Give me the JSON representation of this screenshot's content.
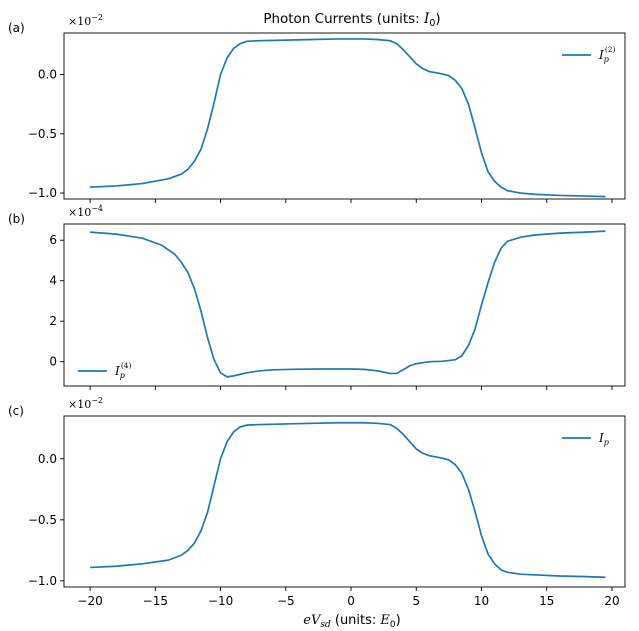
{
  "figure": {
    "title": "Photon Currents (units: ",
    "title_math": "I",
    "title_math_sub": "0",
    "title_close": ")",
    "xlabel_math": "eV",
    "xlabel_math_sub": "sd",
    "xlabel_text": " (units: ",
    "xlabel_math2": "E",
    "xlabel_math2_sub": "0",
    "xlabel_close": ")"
  },
  "chart_data": [
    {
      "type": "line",
      "panel_label": "(a)",
      "exponent_text": "×10",
      "exponent_power": "−2",
      "xlim": [
        -22,
        21
      ],
      "ylim": [
        -1.05,
        0.35
      ],
      "yticks": [
        -1.0,
        -0.5,
        0.0
      ],
      "ytick_labels": [
        "−1.0",
        "−0.5",
        "0.0"
      ],
      "xticks": [
        -20,
        -15,
        -10,
        -5,
        0,
        5,
        10,
        15,
        20
      ],
      "xtick_labels": [],
      "legend_position": "top-right",
      "color": "#1f77b4",
      "series": [
        {
          "name_main": "I",
          "name_sub": "p",
          "name_sup": "(2)",
          "x": [
            -20,
            -18,
            -16,
            -14,
            -13,
            -12.5,
            -12,
            -11.5,
            -11,
            -10.5,
            -10,
            -9.5,
            -9,
            -8.5,
            -8,
            -7,
            -5,
            -3,
            -1,
            0,
            1,
            2,
            3,
            3.5,
            4,
            4.5,
            5,
            5.5,
            6,
            6.5,
            7,
            7.5,
            8,
            8.5,
            9,
            9.5,
            10,
            10.5,
            11,
            11.5,
            12,
            13,
            14,
            16,
            18,
            19.5
          ],
          "y": [
            -0.95,
            -0.94,
            -0.92,
            -0.88,
            -0.84,
            -0.8,
            -0.73,
            -0.63,
            -0.46,
            -0.24,
            0.0,
            0.14,
            0.22,
            0.26,
            0.28,
            0.285,
            0.29,
            0.295,
            0.3,
            0.3,
            0.3,
            0.295,
            0.285,
            0.26,
            0.21,
            0.15,
            0.09,
            0.05,
            0.025,
            0.015,
            0.005,
            -0.01,
            -0.05,
            -0.12,
            -0.25,
            -0.45,
            -0.66,
            -0.82,
            -0.9,
            -0.95,
            -0.98,
            -1.0,
            -1.01,
            -1.02,
            -1.025,
            -1.03
          ]
        }
      ]
    },
    {
      "type": "line",
      "panel_label": "(b)",
      "exponent_text": "×10",
      "exponent_power": "−4",
      "xlim": [
        -22,
        21
      ],
      "ylim": [
        -1.2,
        6.8
      ],
      "yticks": [
        0,
        2,
        4,
        6
      ],
      "ytick_labels": [
        "0",
        "2",
        "4",
        "6"
      ],
      "xticks": [
        -20,
        -15,
        -10,
        -5,
        0,
        5,
        10,
        15,
        20
      ],
      "xtick_labels": [],
      "legend_position": "bottom-left",
      "color": "#1f77b4",
      "series": [
        {
          "name_main": "I",
          "name_sub": "p",
          "name_sup": "(4)",
          "x": [
            -20,
            -18,
            -16,
            -14.5,
            -13.5,
            -13,
            -12.5,
            -12,
            -11.5,
            -11,
            -10.5,
            -10,
            -9.5,
            -9,
            -8,
            -7,
            -6,
            -4,
            -2,
            0,
            1,
            2,
            3,
            3.5,
            4,
            4.5,
            5,
            5.5,
            6,
            7,
            8,
            8.5,
            9,
            9.5,
            10,
            10.5,
            11,
            11.5,
            12,
            13,
            14,
            16,
            18,
            19.5
          ],
          "y": [
            6.4,
            6.3,
            6.1,
            5.75,
            5.3,
            4.9,
            4.4,
            3.6,
            2.5,
            1.2,
            0.1,
            -0.55,
            -0.75,
            -0.7,
            -0.55,
            -0.45,
            -0.4,
            -0.37,
            -0.36,
            -0.36,
            -0.38,
            -0.45,
            -0.58,
            -0.58,
            -0.4,
            -0.2,
            -0.1,
            -0.05,
            0.0,
            0.02,
            0.1,
            0.3,
            0.8,
            1.6,
            2.8,
            3.9,
            4.9,
            5.6,
            5.95,
            6.15,
            6.25,
            6.35,
            6.4,
            6.45
          ]
        }
      ]
    },
    {
      "type": "line",
      "panel_label": "(c)",
      "exponent_text": "×10",
      "exponent_power": "−2",
      "xlim": [
        -22,
        21
      ],
      "ylim": [
        -1.05,
        0.35
      ],
      "yticks": [
        -1.0,
        -0.5,
        0.0
      ],
      "ytick_labels": [
        "−1.0",
        "−0.5",
        "0.0"
      ],
      "xticks": [
        -20,
        -15,
        -10,
        -5,
        0,
        5,
        10,
        15,
        20
      ],
      "xtick_labels": [
        "−20",
        "−15",
        "−10",
        "−5",
        "0",
        "5",
        "10",
        "15",
        "20"
      ],
      "legend_position": "top-right",
      "color": "#1f77b4",
      "series": [
        {
          "name_main": "I",
          "name_sub": "p",
          "name_sup": "",
          "x": [
            -20,
            -18,
            -16,
            -14,
            -13,
            -12.5,
            -12,
            -11.5,
            -11,
            -10.5,
            -10,
            -9.5,
            -9,
            -8.5,
            -8,
            -7,
            -5,
            -3,
            -1,
            0,
            1,
            2,
            3,
            3.5,
            4,
            4.5,
            5,
            5.5,
            6,
            6.5,
            7,
            7.5,
            8,
            8.5,
            9,
            9.5,
            10,
            10.5,
            11,
            11.5,
            12,
            13,
            14,
            16,
            18,
            19.5
          ],
          "y": [
            -0.89,
            -0.88,
            -0.86,
            -0.83,
            -0.79,
            -0.75,
            -0.69,
            -0.59,
            -0.44,
            -0.22,
            0.0,
            0.14,
            0.22,
            0.26,
            0.275,
            0.28,
            0.285,
            0.29,
            0.295,
            0.295,
            0.295,
            0.29,
            0.28,
            0.25,
            0.2,
            0.14,
            0.08,
            0.045,
            0.025,
            0.015,
            0.005,
            -0.01,
            -0.05,
            -0.12,
            -0.25,
            -0.43,
            -0.63,
            -0.78,
            -0.86,
            -0.91,
            -0.93,
            -0.945,
            -0.95,
            -0.96,
            -0.965,
            -0.97
          ]
        }
      ]
    }
  ]
}
